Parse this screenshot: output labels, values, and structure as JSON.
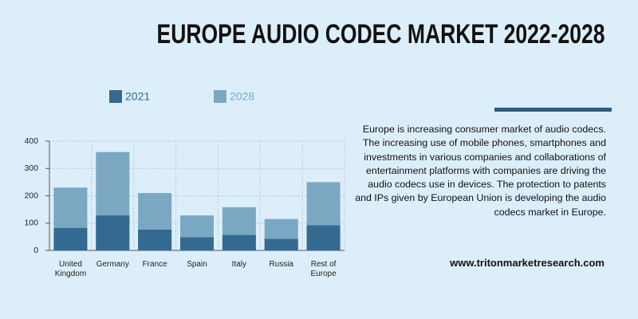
{
  "chart_data": {
    "type": "bar",
    "title": "EUROPE AUDIO CODEC MARKET 2022-2028",
    "categories": [
      "United Kingdom",
      "Germany",
      "France",
      "Spain",
      "Italy",
      "Russia",
      "Rest of Europe"
    ],
    "series": [
      {
        "name": "2021",
        "color": "#346a92",
        "values": [
          82,
          128,
          76,
          48,
          56,
          42,
          92
        ]
      },
      {
        "name": "2028",
        "color": "#7aa8c2",
        "values": [
          230,
          360,
          210,
          128,
          158,
          115,
          250
        ]
      }
    ],
    "ylim": [
      0,
      400
    ],
    "yticks": [
      0,
      100,
      200,
      300,
      400
    ],
    "grid": true
  },
  "description": "Europe is increasing consumer market of audio codecs. The increasing use of mobile phones, smartphones and investments in various companies and collaborations of entertainment platforms with companies are driving the audio codecs use in devices. The protection to patents and IPs given by European Union is developing the audio codecs market in Europe.",
  "website": "www.tritonmarketresearch.com"
}
